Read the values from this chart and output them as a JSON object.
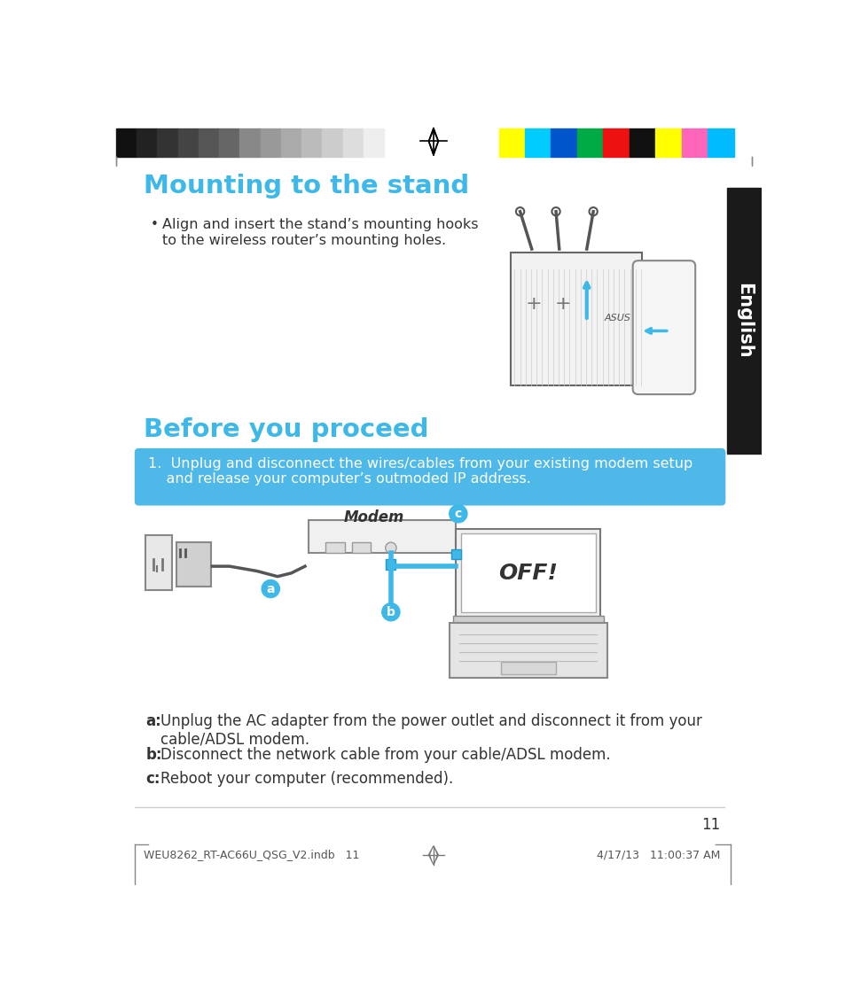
{
  "bg_color": "#ffffff",
  "title1": "Mounting to the stand",
  "title1_color": "#3db8e8",
  "bullet1": "Align and insert the stand’s mounting hooks\nto the wireless router’s mounting holes.",
  "title2": "Before you proceed",
  "title2_color": "#3db8e8",
  "blue_box_text": "1.  Unplug and disconnect the wires/cables from your existing modem setup\n    and release your computer’s outmoded IP address.",
  "blue_box_bg": "#4eb8e8",
  "blue_box_text_color": "#ffffff",
  "label_a_bold": "a:",
  "label_a_text": "Unplug the AC adapter from the power outlet and disconnect it from your\ncable/ADSL modem.",
  "label_b_bold": "b:",
  "label_b_text": "Disconnect the network cable from your cable/ADSL modem.",
  "label_c_bold": "c:",
  "label_c_text": "Reboot your computer (recommended).",
  "page_number": "11",
  "footer_left": "WEU8262_RT-AC66U_QSG_V2.indb   11",
  "footer_right": "4/17/13   11:00:37 AM",
  "color_bar_gray": [
    "#111111",
    "#222222",
    "#333333",
    "#444444",
    "#555555",
    "#666666",
    "#888888",
    "#999999",
    "#aaaaaa",
    "#bbbbbb",
    "#cccccc",
    "#dddddd",
    "#eeeeee"
  ],
  "color_bar_color": [
    "#ffff00",
    "#00ccff",
    "#0055cc",
    "#00aa44",
    "#ee1111",
    "#111111",
    "#ffff00",
    "#ff66bb",
    "#00bbff"
  ],
  "english_sidebar_color": "#1a1a1a",
  "english_sidebar_text": "English",
  "text_color": "#333333"
}
